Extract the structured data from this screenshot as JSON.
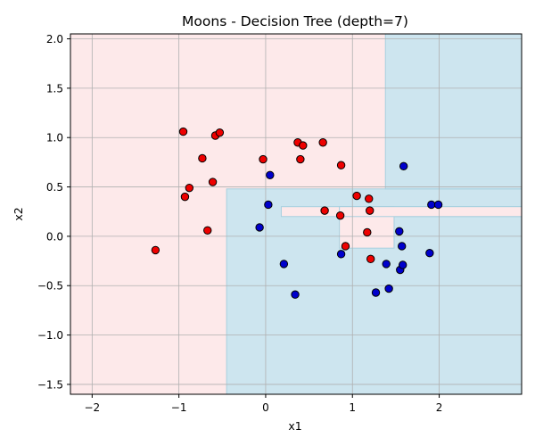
{
  "chart_data": {
    "type": "scatter",
    "title": "Moons - Decision Tree (depth=7)",
    "xlabel": "x1",
    "ylabel": "x2",
    "xlim": [
      -2.25,
      2.95
    ],
    "ylim": [
      -1.6,
      2.05
    ],
    "xticks": [
      -2,
      -1,
      0,
      1,
      2
    ],
    "yticks": [
      -1.5,
      -1.0,
      -0.5,
      0.0,
      0.5,
      1.0,
      1.5,
      2.0
    ],
    "xtick_labels": [
      "−2",
      "−1",
      "0",
      "1",
      "2"
    ],
    "ytick_labels": [
      "−1.5",
      "−1.0",
      "−0.5",
      "0.0",
      "0.5",
      "1.0",
      "1.5",
      "2.0"
    ],
    "grid": true,
    "colors": {
      "class0_point": "#ee0000",
      "class1_point": "#0000cc",
      "class0_region": "#fde9ea",
      "class1_region": "#cde5ef",
      "grid": "#b0b0b0"
    },
    "decision_regions": {
      "class0_background": true,
      "class1_rectangles": [
        {
          "x0": -0.45,
          "x1": 2.95,
          "y0": -1.6,
          "y1": 0.48
        },
        {
          "x0": 1.38,
          "x1": 2.95,
          "y0": 0.48,
          "y1": 2.05
        }
      ],
      "class0_rectangles": [
        {
          "x0": 0.18,
          "x1": 2.95,
          "y0": 0.2,
          "y1": 0.3
        },
        {
          "x0": 0.85,
          "x1": 1.48,
          "y0": -0.12,
          "y1": 0.3
        },
        {
          "x0": 0.85,
          "x1": 2.95,
          "y0": 0.2,
          "y1": 0.3
        }
      ]
    },
    "series": [
      {
        "class": 0,
        "points": [
          [
            -1.27,
            -0.14
          ],
          [
            -0.95,
            1.06
          ],
          [
            -0.93,
            0.4
          ],
          [
            -0.88,
            0.49
          ],
          [
            -0.73,
            0.79
          ],
          [
            -0.67,
            0.06
          ],
          [
            -0.61,
            0.55
          ],
          [
            -0.58,
            1.02
          ],
          [
            -0.53,
            1.05
          ],
          [
            -0.03,
            0.78
          ],
          [
            0.37,
            0.95
          ],
          [
            0.4,
            0.78
          ],
          [
            0.43,
            0.92
          ],
          [
            0.66,
            0.95
          ],
          [
            0.68,
            0.26
          ],
          [
            0.86,
            0.21
          ],
          [
            0.87,
            0.72
          ],
          [
            0.92,
            -0.1
          ],
          [
            1.05,
            0.41
          ],
          [
            1.17,
            0.04
          ],
          [
            1.19,
            0.38
          ],
          [
            1.2,
            0.26
          ],
          [
            1.21,
            -0.23
          ]
        ]
      },
      {
        "class": 1,
        "points": [
          [
            -0.07,
            0.09
          ],
          [
            0.03,
            0.32
          ],
          [
            0.05,
            0.62
          ],
          [
            0.21,
            -0.28
          ],
          [
            0.34,
            -0.59
          ],
          [
            0.87,
            -0.18
          ],
          [
            1.27,
            -0.57
          ],
          [
            1.39,
            -0.28
          ],
          [
            1.42,
            -0.53
          ],
          [
            1.54,
            0.05
          ],
          [
            1.55,
            -0.34
          ],
          [
            1.57,
            -0.1
          ],
          [
            1.58,
            -0.29
          ],
          [
            1.59,
            0.71
          ],
          [
            1.89,
            -0.17
          ],
          [
            1.91,
            0.32
          ],
          [
            1.99,
            0.32
          ]
        ]
      }
    ]
  }
}
